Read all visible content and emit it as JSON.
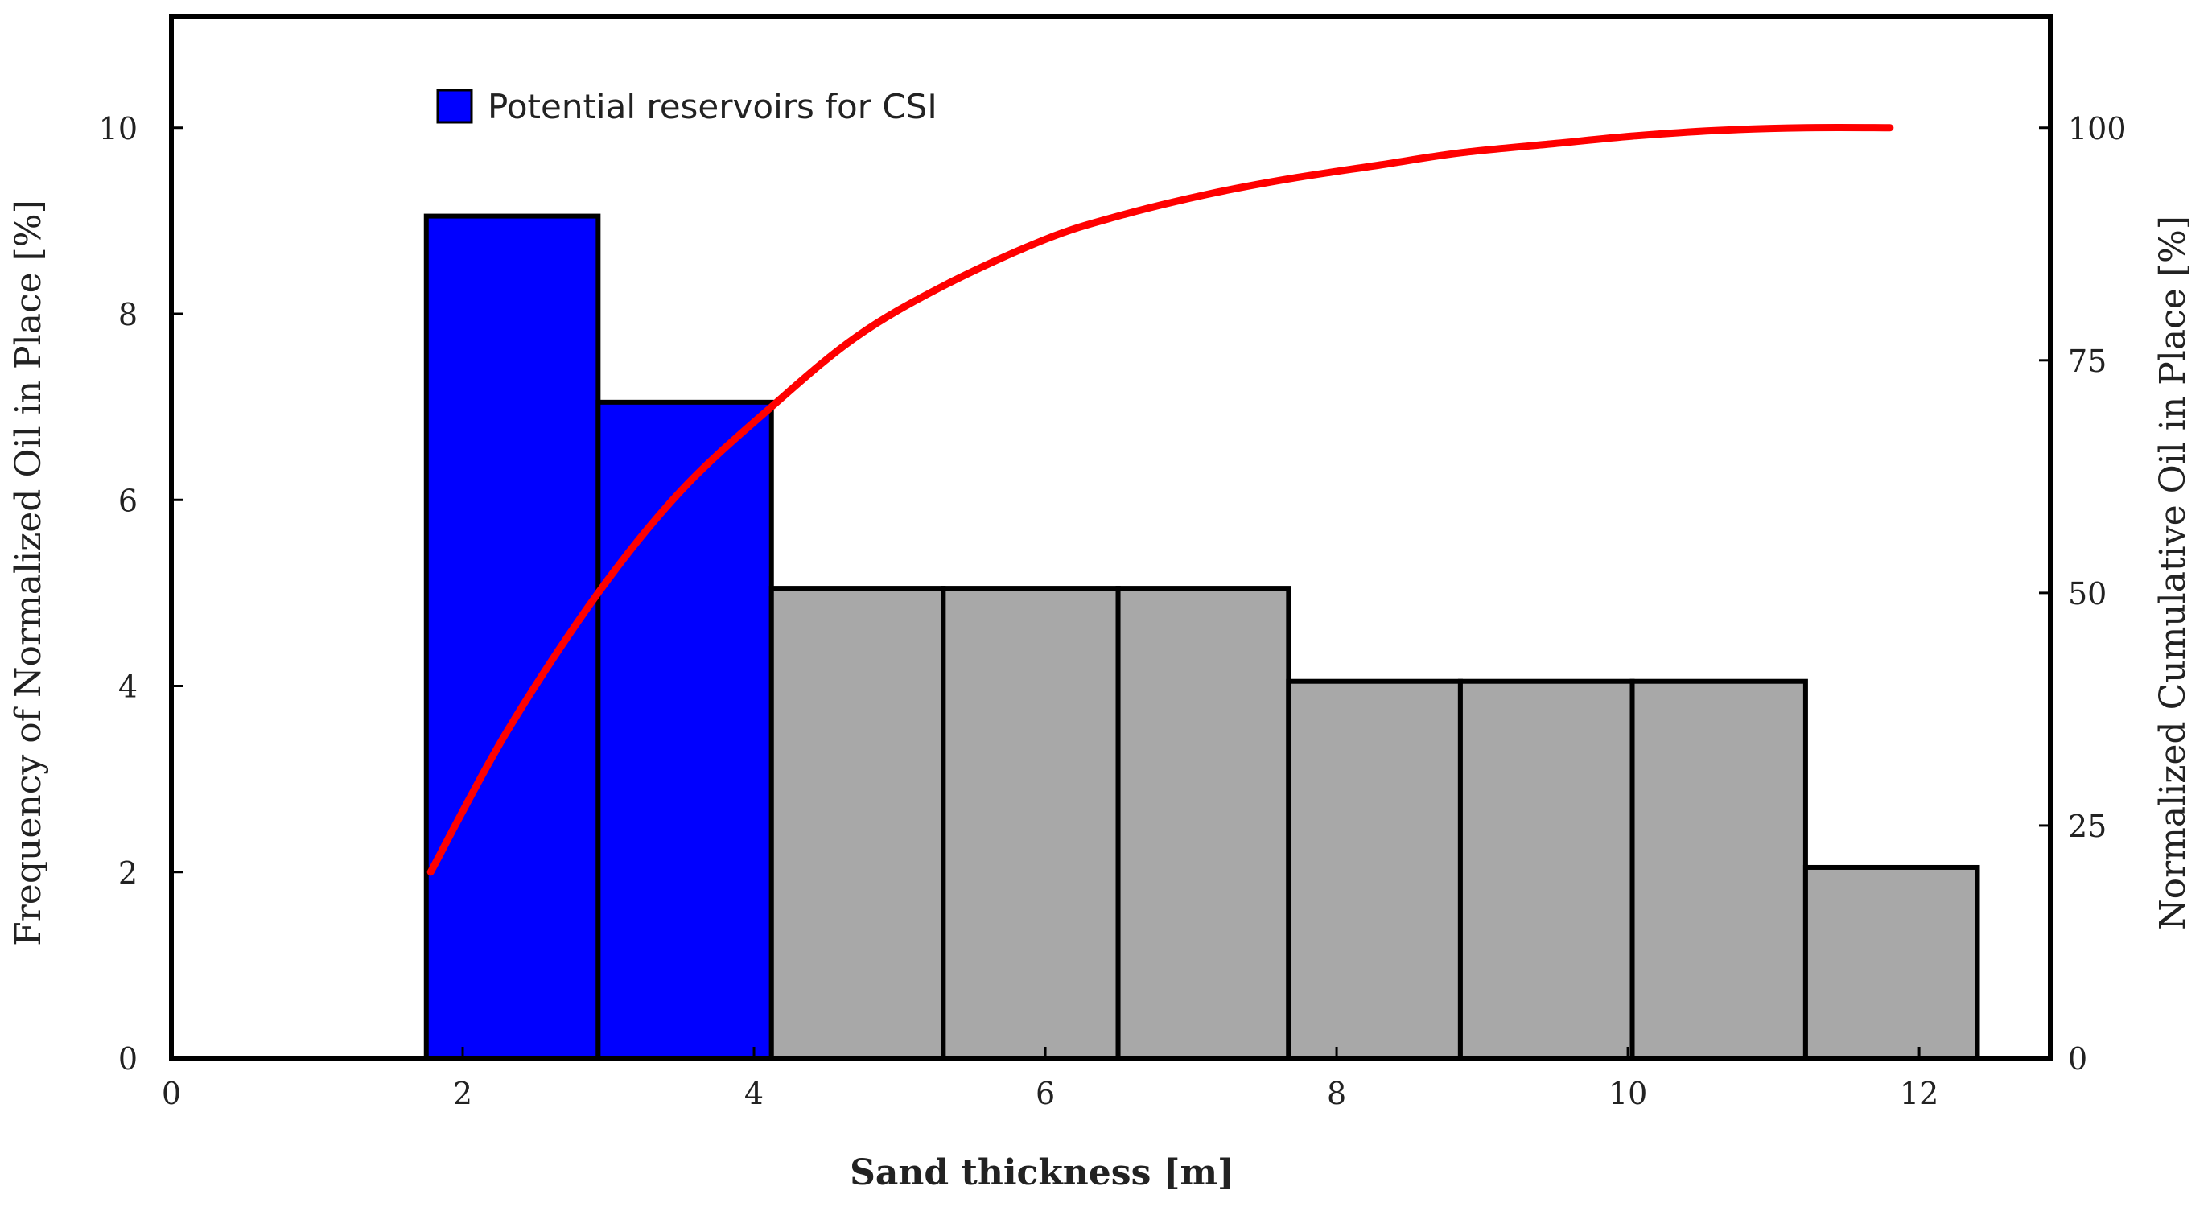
{
  "chart_data": {
    "type": "bar",
    "xlabel": "Sand thickness [m]",
    "ylabel_left": "Frequency of Normalized Oil in Place [%]",
    "ylabel_right": "Normalized Cumulative Oil in Place [%]",
    "x_ticks": [
      0,
      2,
      4,
      6,
      8,
      10,
      12
    ],
    "y_left_ticks": [
      0,
      2,
      4,
      6,
      8,
      10
    ],
    "y_right_ticks": [
      0,
      25,
      50,
      75,
      100
    ],
    "xlim": [
      0,
      12.9
    ],
    "ylim_left": [
      0,
      11.2
    ],
    "ylim_right": [
      0,
      112
    ],
    "grid": false,
    "legend": {
      "label": "Potential reservoirs for CSI",
      "color": "#0000ff",
      "placement": "top-left"
    },
    "bars": [
      {
        "x_start": 1.75,
        "x_end": 2.93,
        "value": 9.05,
        "potential_csi": true
      },
      {
        "x_start": 2.93,
        "x_end": 4.12,
        "value": 7.05,
        "potential_csi": true
      },
      {
        "x_start": 4.12,
        "x_end": 5.3,
        "value": 5.05,
        "potential_csi": false
      },
      {
        "x_start": 5.3,
        "x_end": 6.5,
        "value": 5.05,
        "potential_csi": false
      },
      {
        "x_start": 6.5,
        "x_end": 7.67,
        "value": 5.05,
        "potential_csi": false
      },
      {
        "x_start": 7.67,
        "x_end": 8.85,
        "value": 4.05,
        "potential_csi": false
      },
      {
        "x_start": 8.85,
        "x_end": 10.03,
        "value": 4.05,
        "potential_csi": false
      },
      {
        "x_start": 10.03,
        "x_end": 11.22,
        "value": 4.05,
        "potential_csi": false
      },
      {
        "x_start": 11.22,
        "x_end": 12.4,
        "value": 2.05,
        "potential_csi": false
      }
    ],
    "cumulative_curve": {
      "color": "#ff0000",
      "axis": "right",
      "points": [
        [
          1.78,
          20
        ],
        [
          2.3,
          35
        ],
        [
          2.93,
          50
        ],
        [
          3.5,
          61
        ],
        [
          4.12,
          70
        ],
        [
          4.7,
          77.5
        ],
        [
          5.3,
          83
        ],
        [
          6.0,
          88
        ],
        [
          6.5,
          90.5
        ],
        [
          7.1,
          92.8
        ],
        [
          7.67,
          94.5
        ],
        [
          8.3,
          96
        ],
        [
          8.85,
          97.3
        ],
        [
          9.5,
          98.3
        ],
        [
          10.03,
          99.1
        ],
        [
          10.6,
          99.7
        ],
        [
          11.22,
          100
        ],
        [
          11.8,
          100
        ]
      ]
    }
  }
}
